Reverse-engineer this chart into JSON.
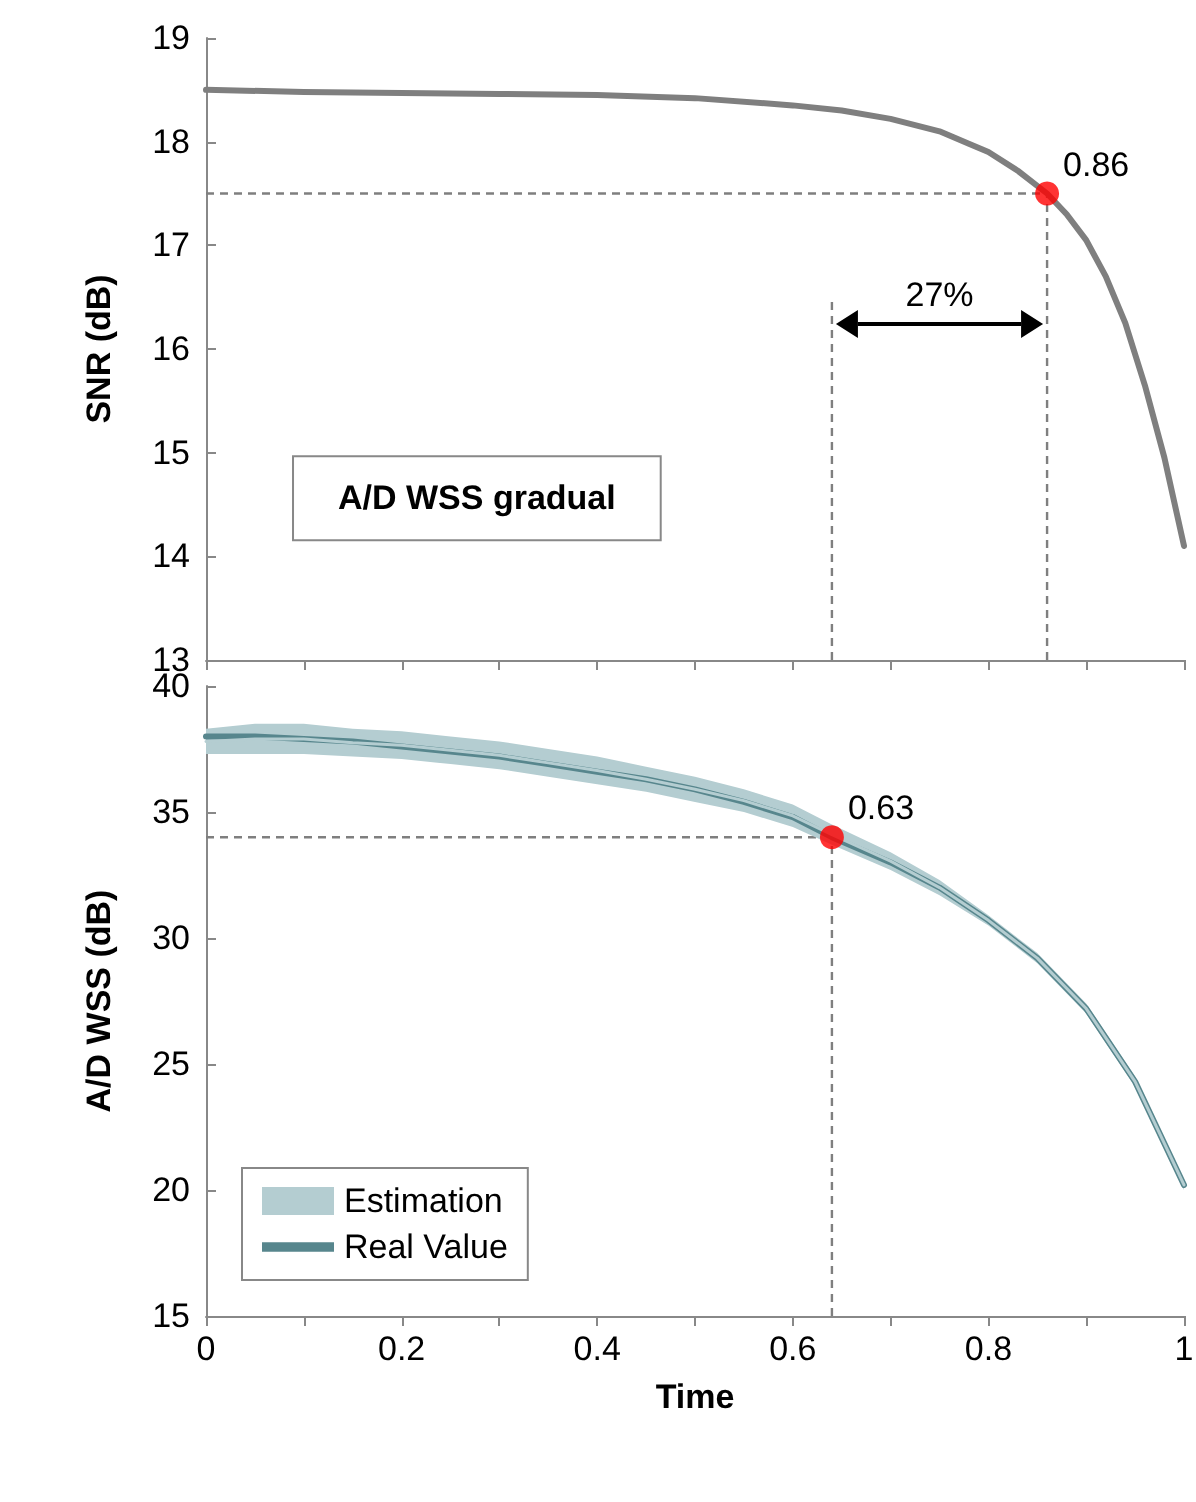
{
  "chart_data": [
    {
      "type": "line",
      "ylabel": "SNR (dB)",
      "tick_labels": "y",
      "grid": false,
      "legend": false,
      "marker": "none",
      "line_style": "solid",
      "xlim": [
        0,
        1
      ],
      "xticks": [
        {
          "value": 0,
          "label": null
        },
        {
          "value": 0.1,
          "label": null
        },
        {
          "value": 0.2,
          "label": null
        },
        {
          "value": 0.3,
          "label": null
        },
        {
          "value": 0.4,
          "label": null
        },
        {
          "value": 0.5,
          "label": null
        },
        {
          "value": 0.6,
          "label": null
        },
        {
          "value": 0.7,
          "label": null
        },
        {
          "value": 0.8,
          "label": null
        },
        {
          "value": 0.9,
          "label": null
        },
        {
          "value": 1,
          "label": null
        }
      ],
      "ylim": [
        13,
        19
      ],
      "yticks": [
        13,
        14,
        15,
        16,
        17,
        18,
        19
      ],
      "series": [
        {
          "color": "#7f7f7f",
          "x": [
            0,
            0.1,
            0.2,
            0.3,
            0.4,
            0.5,
            0.6,
            0.65,
            0.7,
            0.75,
            0.78,
            0.8,
            0.83,
            0.86,
            0.88,
            0.9,
            0.92,
            0.94,
            0.96,
            0.98,
            1
          ],
          "values": [
            18.5,
            18.48,
            18.47,
            18.46,
            18.45,
            18.42,
            18.35,
            18.3,
            18.22,
            18.1,
            17.98,
            17.9,
            17.72,
            17.5,
            17.3,
            17.05,
            16.7,
            16.25,
            15.65,
            14.95,
            14.1
          ]
        },
        {
          "type": "scatter",
          "marker": "circle",
          "color": "#ff0000",
          "x": [
            0.86
          ],
          "values": [
            17.5
          ]
        }
      ],
      "ref_lines": [
        {
          "axis": "y",
          "value": 17.5,
          "color": "#7f7f7f",
          "line_style": "dashed"
        },
        {
          "axis": "x",
          "value": 0.86,
          "color": "#7f7f7f",
          "line_style": "dashed"
        },
        {
          "axis": "x",
          "value": 0.64,
          "color": "#7f7f7f",
          "line_style": "dashed"
        }
      ],
      "annotations": [
        "A/D WSS gradual",
        {
          "text": "0.86",
          "x": 0.86,
          "y": 17.5
        },
        "27%"
      ]
    },
    {
      "type": "line",
      "xlabel": "Time",
      "ylabel": "A/D WSS (dB)",
      "grid": false,
      "legend": "bottom left",
      "marker": "none",
      "line_style": "solid",
      "xlim": [
        0,
        1
      ],
      "xticks": [
        0,
        {
          "value": 0.1,
          "label": null
        },
        0.2,
        {
          "value": 0.3,
          "label": null
        },
        0.4,
        {
          "value": 0.5,
          "label": null
        },
        0.6,
        {
          "value": 0.7,
          "label": null
        },
        0.8,
        {
          "value": 0.9,
          "label": null
        },
        1
      ],
      "ylim": [
        15,
        40
      ],
      "yticks": [
        15,
        20,
        25,
        30,
        35,
        40
      ],
      "series": [
        {
          "name": "Estimation",
          "color": "#b4cdd1",
          "x": [
            0,
            0.05,
            0.1,
            0.15,
            0.2,
            0.25,
            0.3,
            0.35,
            0.4,
            0.45,
            0.5,
            0.55,
            0.6,
            0.64,
            0.7,
            0.75,
            0.8,
            0.85,
            0.9,
            0.95,
            1
          ],
          "values": [
            37.8,
            37.9,
            37.9,
            37.75,
            37.65,
            37.45,
            37.25,
            36.95,
            36.65,
            36.3,
            35.9,
            35.45,
            34.85,
            34.1,
            33.05,
            32,
            30.7,
            29.2,
            27.2,
            24.3,
            20.2
          ],
          "upper": [
            38.3,
            38.5,
            38.5,
            38.3,
            38.2,
            38,
            37.8,
            37.5,
            37.2,
            36.8,
            36.4,
            35.9,
            35.3,
            34.5,
            33.4,
            32.3,
            30.9,
            29.4,
            27.4,
            24.5,
            20.4
          ],
          "lower": [
            37.3,
            37.3,
            37.3,
            37.2,
            37.1,
            36.9,
            36.7,
            36.4,
            36.1,
            35.8,
            35.4,
            35,
            34.4,
            33.7,
            32.7,
            31.7,
            30.5,
            29,
            27,
            24.1,
            20
          ]
        },
        {
          "name": "Real Value",
          "color": "#57868d",
          "x": [
            0,
            0.05,
            0.1,
            0.15,
            0.2,
            0.25,
            0.3,
            0.35,
            0.4,
            0.45,
            0.5,
            0.55,
            0.6,
            0.64,
            0.7,
            0.75,
            0.8,
            0.85,
            0.9,
            0.95,
            1
          ],
          "values": [
            38,
            38,
            37.9,
            37.8,
            37.6,
            37.4,
            37.2,
            36.9,
            36.6,
            36.3,
            35.9,
            35.4,
            34.8,
            34,
            33,
            32,
            30.7,
            29.2,
            27.2,
            24.3,
            20.2
          ]
        },
        {
          "type": "scatter",
          "marker": "circle",
          "color": "#ff0000",
          "x": [
            0.64
          ],
          "values": [
            34
          ]
        }
      ],
      "ref_lines": [
        {
          "axis": "y",
          "value": 34,
          "color": "#7f7f7f",
          "line_style": "dashed"
        },
        {
          "axis": "x",
          "value": 0.64,
          "color": "#7f7f7f",
          "line_style": "dashed"
        }
      ],
      "annotations": [
        {
          "text": "0.63",
          "x": 0.64,
          "y": 34
        }
      ]
    }
  ]
}
